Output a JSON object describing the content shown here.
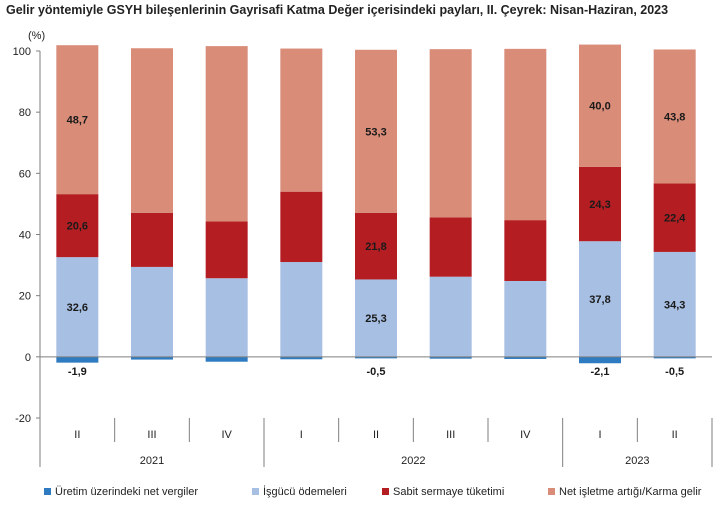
{
  "chart_data": {
    "type": "bar",
    "stacked": true,
    "title": "Gelir yöntemiyle GSYH bileşenlerinin Gayrisafi Katma Değer içerisindeki payları, II. Çeyrek: Nisan-Haziran, 2023",
    "ylabel": "(%)",
    "ylim": [
      -20,
      100
    ],
    "yticks": [
      -20,
      0,
      20,
      40,
      60,
      80,
      100
    ],
    "categories": [
      "II",
      "III",
      "IV",
      "I",
      "II",
      "III",
      "IV",
      "I",
      "II"
    ],
    "years": [
      {
        "label": "2021",
        "count": 3
      },
      {
        "label": "2022",
        "count": 4
      },
      {
        "label": "2023",
        "count": 2
      }
    ],
    "series": [
      {
        "name": "Üretim üzerindeki net vergiler",
        "color": "#2e7bc1",
        "values": [
          -1.9,
          -0.9,
          -1.6,
          -0.8,
          -0.5,
          -0.6,
          -0.7,
          -2.1,
          -0.5
        ],
        "labels": [
          "-1,9",
          "",
          "",
          "",
          "-0,5",
          "",
          "",
          "-2,1",
          "-0,5"
        ]
      },
      {
        "name": "İşgücü ödemeleri",
        "color": "#a6bfe3",
        "values": [
          32.6,
          29.4,
          25.7,
          31.0,
          25.3,
          26.2,
          24.8,
          37.8,
          34.3
        ],
        "labels": [
          "32,6",
          "",
          "",
          "",
          "25,3",
          "",
          "",
          "37,8",
          "34,3"
        ]
      },
      {
        "name": "Sabit sermaye tüketimi",
        "color": "#b41e22",
        "values": [
          20.6,
          17.7,
          18.6,
          23.0,
          21.8,
          19.4,
          19.9,
          24.3,
          22.4
        ],
        "labels": [
          "20,6",
          "",
          "",
          "",
          "21,8",
          "",
          "",
          "24,3",
          "22,4"
        ]
      },
      {
        "name": "Net işletme artığı/Karma gelir",
        "color": "#d98c78",
        "values": [
          48.7,
          53.8,
          57.3,
          46.8,
          53.3,
          55.0,
          56.0,
          40.0,
          43.8
        ],
        "labels": [
          "48,7",
          "",
          "",
          "",
          "53,3",
          "",
          "",
          "40,0",
          "43,8"
        ]
      }
    ]
  }
}
